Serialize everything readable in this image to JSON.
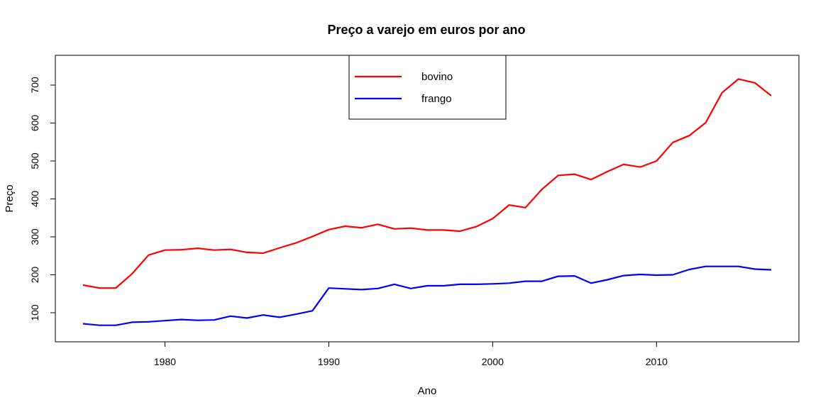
{
  "chart_data": {
    "type": "line",
    "title": "Preço a varejo em euros por ano",
    "xlabel": "Ano",
    "ylabel": "Preço",
    "xlim": [
      1975,
      2017
    ],
    "ylim": [
      22,
      780
    ],
    "x_ticks": [
      1980,
      1990,
      2000,
      2010
    ],
    "y_ticks": [
      100,
      200,
      300,
      400,
      500,
      600,
      700
    ],
    "grid": false,
    "legend": "top-center",
    "x": [
      1975,
      1976,
      1977,
      1978,
      1979,
      1980,
      1981,
      1982,
      1983,
      1984,
      1985,
      1986,
      1987,
      1988,
      1989,
      1990,
      1991,
      1992,
      1993,
      1994,
      1995,
      1996,
      1997,
      1998,
      1999,
      2000,
      2001,
      2002,
      2003,
      2004,
      2005,
      2006,
      2007,
      2008,
      2009,
      2010,
      2011,
      2012,
      2013,
      2014,
      2015,
      2016,
      2017
    ],
    "series": [
      {
        "name": "bovino",
        "color": "#ff0000",
        "values": [
          173,
          165,
          165,
          203,
          252,
          265,
          266,
          270,
          265,
          267,
          259,
          257,
          271,
          284,
          301,
          319,
          328,
          324,
          333,
          321,
          323,
          318,
          318,
          315,
          327,
          348,
          384,
          377,
          425,
          462,
          465,
          451,
          472,
          491,
          484,
          500,
          549,
          567,
          601,
          680,
          716,
          706,
          672
        ]
      },
      {
        "name": "frango",
        "color": "#0000ff",
        "values": [
          71,
          67,
          67,
          75,
          76,
          79,
          82,
          80,
          81,
          91,
          86,
          94,
          88,
          96,
          105,
          165,
          163,
          161,
          164,
          175,
          164,
          171,
          171,
          175,
          175,
          176,
          178,
          183,
          183,
          196,
          197,
          178,
          187,
          198,
          201,
          199,
          200,
          214,
          222,
          222,
          222,
          215,
          213
        ]
      }
    ]
  }
}
